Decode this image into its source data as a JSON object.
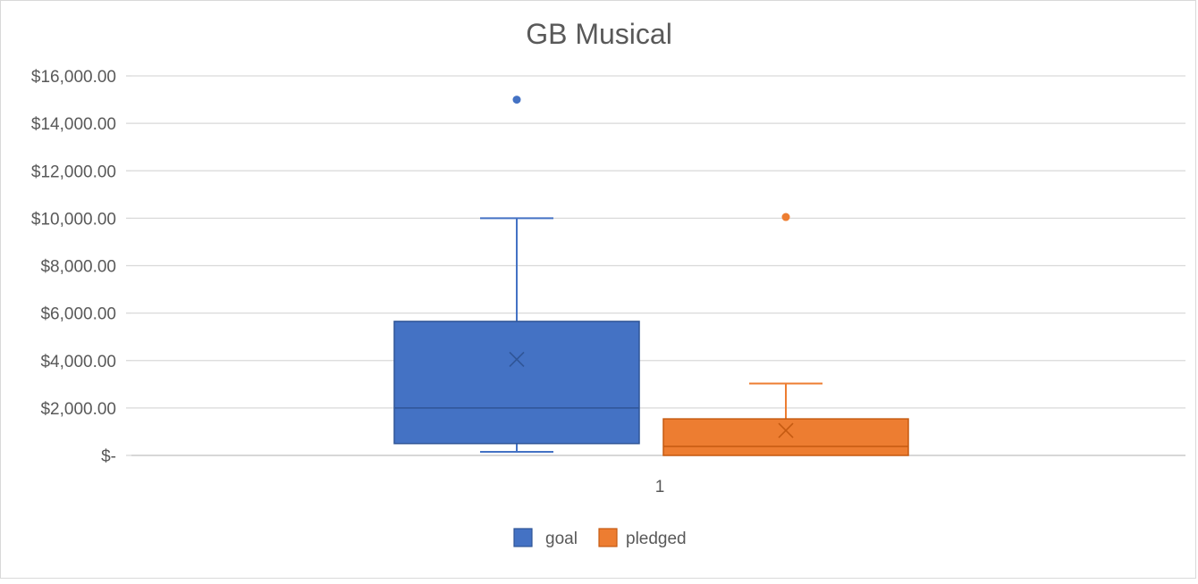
{
  "chart_data": {
    "type": "box",
    "title": "GB Musical",
    "categories": [
      "1"
    ],
    "ylim": [
      0,
      16000
    ],
    "y_ticks": [
      0,
      2000,
      4000,
      6000,
      8000,
      10000,
      12000,
      14000,
      16000
    ],
    "y_tick_labels": [
      "$-",
      "$2,000.00",
      "$4,000.00",
      "$6,000.00",
      "$8,000.00",
      "$10,000.00",
      "$12,000.00",
      "$14,000.00",
      "$16,000.00"
    ],
    "grid": true,
    "legend_position": "bottom",
    "series": [
      {
        "name": "goal",
        "color": "#4472c4",
        "border": "#2f5597",
        "whisker_low": 150,
        "q1": 500,
        "median": 2000,
        "q3": 5650,
        "whisker_high": 10000,
        "mean": 4050,
        "outliers": [
          15000
        ]
      },
      {
        "name": "pledged",
        "color": "#ed7d31",
        "border": "#c55a11",
        "whisker_low": 0,
        "q1": 0,
        "median": 380,
        "q3": 1540,
        "whisker_high": 3030,
        "mean": 1050,
        "outliers": [
          10050
        ]
      }
    ]
  }
}
